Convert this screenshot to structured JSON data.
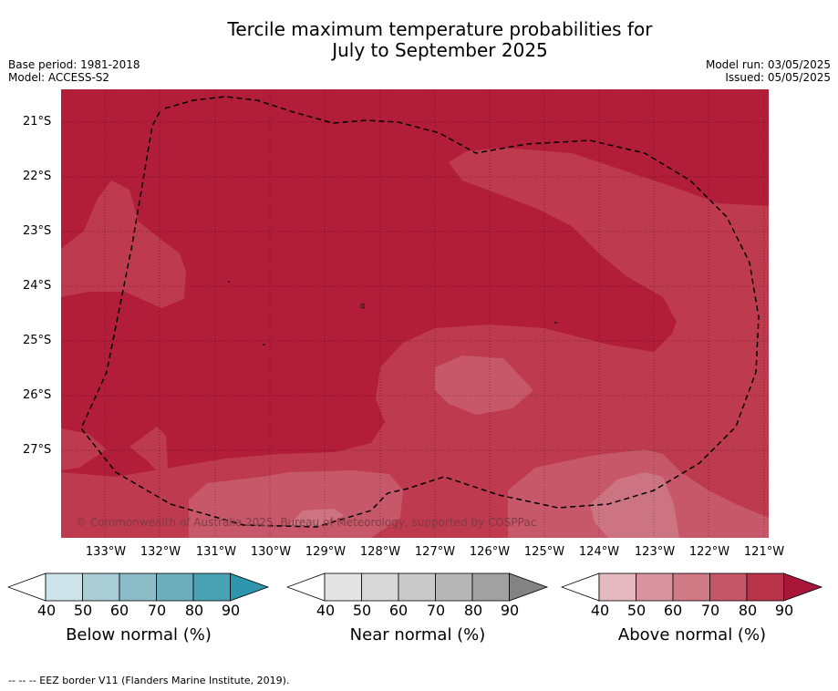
{
  "title": {
    "line1": "Tercile maximum temperature probabilities for",
    "line2": "July to September 2025"
  },
  "meta": {
    "base_period": "Base period: 1981-2018",
    "model": "Model: ACCESS-S2",
    "model_run": "Model run: 03/05/2025",
    "issued": "Issued: 05/05/2025"
  },
  "map": {
    "lat_labels": [
      "21°S",
      "22°S",
      "23°S",
      "24°S",
      "25°S",
      "26°S",
      "27°S"
    ],
    "lon_labels": [
      "133°W",
      "132°W",
      "131°W",
      "130°W",
      "129°W",
      "128°W",
      "127°W",
      "126°W",
      "125°W",
      "124°W",
      "123°W",
      "122°W",
      "121°W"
    ],
    "copyright": "© Commonwealth of Australia 2025, Bureau of Meteorology, supported by COSPPac",
    "colors": {
      "above_80_90": "#b21e3a",
      "above_70_80": "#bd3a4f",
      "above_60_70": "#c6586a",
      "above_50_60": "#cc7481"
    }
  },
  "colorbars": [
    {
      "label": "Below normal (%)",
      "ticks": [
        "40",
        "50",
        "60",
        "70",
        "80",
        "90"
      ],
      "colors": [
        "#ffffff",
        "#cbe3e9",
        "#a9cdd5",
        "#8cbcc8",
        "#6daebd",
        "#48a2b3",
        "#2e95ad"
      ]
    },
    {
      "label": "Near normal (%)",
      "ticks": [
        "40",
        "50",
        "60",
        "70",
        "80",
        "90"
      ],
      "colors": [
        "#ffffff",
        "#e4e4e4",
        "#d8d8d8",
        "#c9c9c9",
        "#b7b7b7",
        "#a1a1a1",
        "#838383"
      ]
    },
    {
      "label": "Above normal (%)",
      "ticks": [
        "40",
        "50",
        "60",
        "70",
        "80",
        "90"
      ],
      "colors": [
        "#ffffff",
        "#e4b9c0",
        "#d9959f",
        "#d07a85",
        "#c5566a",
        "#b9334b",
        "#a8173a"
      ]
    }
  ],
  "footer": "--  --  -- EEZ border V11 (Flanders Marine Institute, 2019)."
}
